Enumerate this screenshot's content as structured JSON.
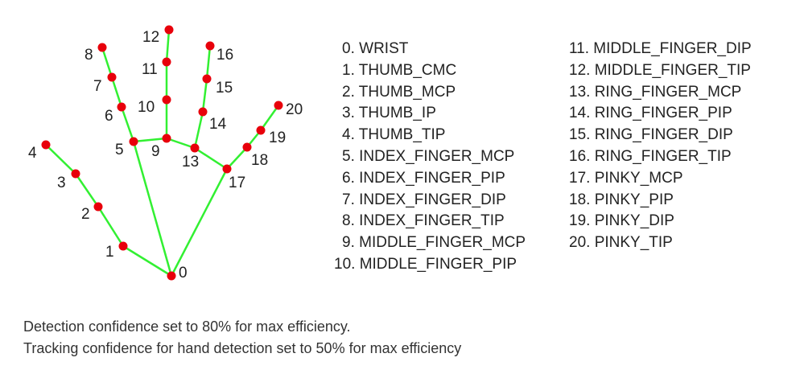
{
  "diagram": {
    "colors": {
      "connection": "#32f032",
      "landmark": "#e8000b",
      "text": "#222222"
    },
    "landmarks": [
      {
        "id": 0,
        "label": "0"
      },
      {
        "id": 1,
        "label": "1"
      },
      {
        "id": 2,
        "label": "2"
      },
      {
        "id": 3,
        "label": "3"
      },
      {
        "id": 4,
        "label": "4"
      },
      {
        "id": 5,
        "label": "5"
      },
      {
        "id": 6,
        "label": "6"
      },
      {
        "id": 7,
        "label": "7"
      },
      {
        "id": 8,
        "label": "8"
      },
      {
        "id": 9,
        "label": "9"
      },
      {
        "id": 10,
        "label": "10"
      },
      {
        "id": 11,
        "label": "11"
      },
      {
        "id": 12,
        "label": "12"
      },
      {
        "id": 13,
        "label": "13"
      },
      {
        "id": 14,
        "label": "14"
      },
      {
        "id": 15,
        "label": "15"
      },
      {
        "id": 16,
        "label": "16"
      },
      {
        "id": 17,
        "label": "17"
      },
      {
        "id": 18,
        "label": "18"
      },
      {
        "id": 19,
        "label": "19"
      },
      {
        "id": 20,
        "label": "20"
      }
    ],
    "connections": [
      [
        0,
        1
      ],
      [
        1,
        2
      ],
      [
        2,
        3
      ],
      [
        3,
        4
      ],
      [
        0,
        5
      ],
      [
        5,
        6
      ],
      [
        6,
        7
      ],
      [
        7,
        8
      ],
      [
        5,
        9
      ],
      [
        9,
        10
      ],
      [
        10,
        11
      ],
      [
        11,
        12
      ],
      [
        9,
        13
      ],
      [
        13,
        14
      ],
      [
        14,
        15
      ],
      [
        15,
        16
      ],
      [
        13,
        17
      ],
      [
        0,
        17
      ],
      [
        17,
        18
      ],
      [
        18,
        19
      ],
      [
        19,
        20
      ]
    ]
  },
  "legend": {
    "column1": [
      {
        "num": "0.",
        "name": "WRIST"
      },
      {
        "num": "1.",
        "name": "THUMB_CMC"
      },
      {
        "num": "2.",
        "name": "THUMB_MCP"
      },
      {
        "num": "3.",
        "name": "THUMB_IP"
      },
      {
        "num": "4.",
        "name": "THUMB_TIP"
      },
      {
        "num": "5.",
        "name": "INDEX_FINGER_MCP"
      },
      {
        "num": "6.",
        "name": "INDEX_FINGER_PIP"
      },
      {
        "num": "7.",
        "name": "INDEX_FINGER_DIP"
      },
      {
        "num": "8.",
        "name": "INDEX_FINGER_TIP"
      },
      {
        "num": "9.",
        "name": "MIDDLE_FINGER_MCP"
      },
      {
        "num": "10.",
        "name": "MIDDLE_FINGER_PIP"
      }
    ],
    "column2": [
      {
        "num": "11.",
        "name": "MIDDLE_FINGER_DIP"
      },
      {
        "num": "12.",
        "name": "MIDDLE_FINGER_TIP"
      },
      {
        "num": "13.",
        "name": "RING_FINGER_MCP"
      },
      {
        "num": "14.",
        "name": "RING_FINGER_PIP"
      },
      {
        "num": "15.",
        "name": "RING_FINGER_DIP"
      },
      {
        "num": "16.",
        "name": "RING_FINGER_TIP"
      },
      {
        "num": "17.",
        "name": "PINKY_MCP"
      },
      {
        "num": "18.",
        "name": "PINKY_PIP"
      },
      {
        "num": "19.",
        "name": "PINKY_DIP"
      },
      {
        "num": "20.",
        "name": "PINKY_TIP"
      }
    ]
  },
  "notes": {
    "detection": "Detection confidence set to 80% for max efficiency.",
    "tracking": "Tracking confidence for hand detection set to 50% for max efficiency"
  }
}
